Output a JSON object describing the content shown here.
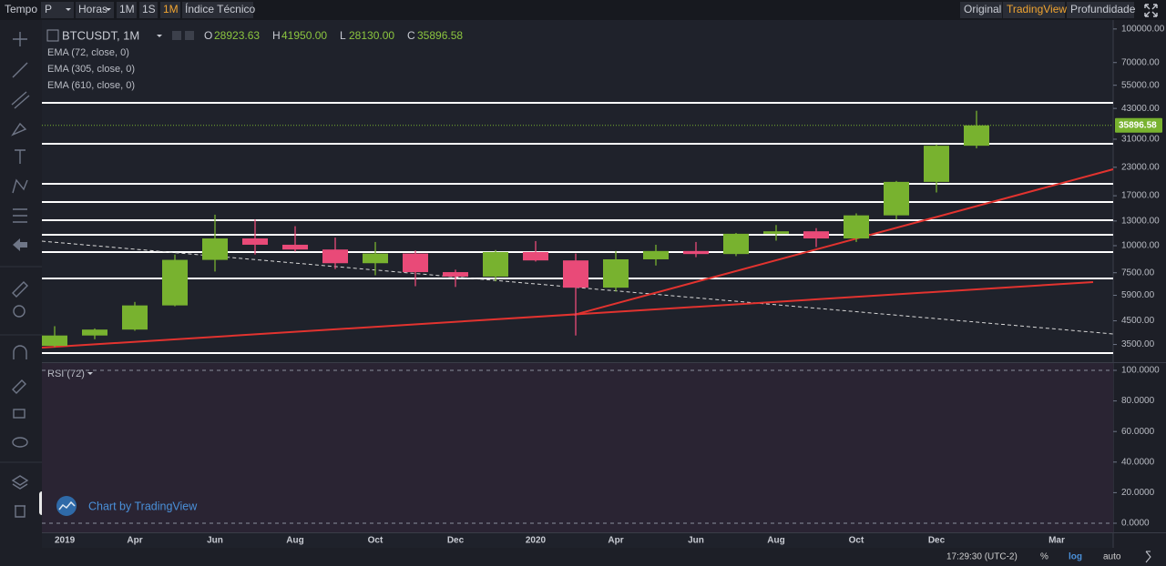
{
  "toolbar": {
    "time_label": "Tempo",
    "period_select": "P",
    "unit_select": "Horas",
    "intervals": [
      "1M",
      "1S",
      "1M"
    ],
    "indicator_button": "Índice Técnico",
    "views": [
      "Original",
      "TradingView",
      "Profundidade"
    ]
  },
  "legend": {
    "symbol": "BTCUSDT, 1M",
    "open_label": "O",
    "open": "28923.63",
    "high_label": "H",
    "high": "41950.00",
    "low_label": "L",
    "low": "28130.00",
    "close_label": "C",
    "close": "35896.58"
  },
  "indicators": [
    "EMA (72, close, 0)",
    "EMA (305, close, 0)",
    "EMA (610, close, 0)"
  ],
  "price_label": "35896.58",
  "chart_data": {
    "type": "candlestick",
    "log_scale": true,
    "up_color": "#78b22f",
    "down_color": "#e94a78",
    "categories": [
      "2019",
      null,
      "Apr",
      null,
      "Jun",
      null,
      "Aug",
      null,
      "Oct",
      null,
      "Dec",
      null,
      "2020",
      null,
      "Apr",
      null,
      "Jun",
      null,
      "Aug",
      null,
      "Oct",
      null,
      "Dec",
      null,
      null,
      "Mar"
    ],
    "open": [
      3450,
      3850,
      4100,
      5300,
      8600,
      10800,
      10100,
      9600,
      8300,
      9200,
      7550,
      7200,
      9350,
      8550,
      6400,
      8650,
      9450,
      9150,
      11350,
      11650,
      10800,
      13800,
      19700,
      28923.63,
      null,
      null
    ],
    "high": [
      4250,
      4150,
      5500,
      9100,
      13900,
      13200,
      12300,
      10900,
      10400,
      9500,
      7750,
      9550,
      10500,
      9200,
      9450,
      10100,
      10400,
      11450,
      12450,
      12050,
      14100,
      19900,
      29300,
      41950,
      null,
      null
    ],
    "low": [
      3400,
      3700,
      4050,
      5250,
      7600,
      9100,
      9400,
      7800,
      7300,
      6500,
      6450,
      6850,
      8450,
      3850,
      6150,
      8100,
      8850,
      8950,
      10550,
      9850,
      10400,
      13200,
      17600,
      28130,
      null,
      null
    ],
    "close": [
      3850,
      4100,
      5300,
      8600,
      10800,
      10100,
      9600,
      8300,
      9200,
      7550,
      7200,
      9350,
      8550,
      6400,
      8650,
      9450,
      9150,
      11350,
      11650,
      10800,
      13800,
      19700,
      28923.63,
      35896.58,
      null,
      null
    ],
    "ylim": [
      2900,
      110000
    ],
    "yticks": [
      {
        "value": 3500,
        "label": "3500.00"
      },
      {
        "value": 4500,
        "label": "4500.00"
      },
      {
        "value": 5900,
        "label": "5900.00"
      },
      {
        "value": 7500,
        "label": "7500.00"
      },
      {
        "value": 10000,
        "label": "10000.00"
      },
      {
        "value": 13000,
        "label": "13000.00"
      },
      {
        "value": 17000,
        "label": "17000.00"
      },
      {
        "value": 23000,
        "label": "23000.00"
      },
      {
        "value": 31000,
        "label": "31000.00"
      },
      {
        "value": 43000,
        "label": "43000.00"
      },
      {
        "value": 55000,
        "label": "55000.00"
      },
      {
        "value": 70000,
        "label": "70000.00"
      },
      {
        "value": 100000,
        "label": "100000.00"
      }
    ]
  },
  "rsi_panel": {
    "title": "RSI (72)",
    "ylim": [
      0,
      100
    ],
    "yticks": [
      {
        "value": 0,
        "label": "0.0000"
      },
      {
        "value": 20,
        "label": "20.0000"
      },
      {
        "value": 40,
        "label": "40.0000"
      },
      {
        "value": 60,
        "label": "60.0000"
      },
      {
        "value": 80,
        "label": "80.0000"
      },
      {
        "value": 100,
        "label": "100.0000"
      }
    ]
  },
  "watermark": "Chart by TradingView",
  "footer": {
    "time": "17:29:30 (UTC-2)",
    "percent": "%",
    "log": "log",
    "auto": "auto"
  }
}
